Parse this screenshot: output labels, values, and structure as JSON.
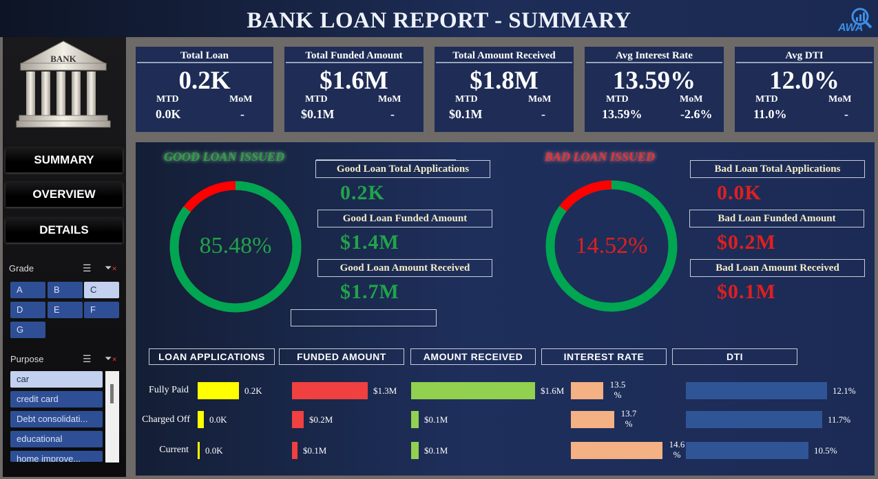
{
  "header": {
    "title": "BANK LOAN REPORT - SUMMARY",
    "logo_text": "AWA"
  },
  "sidebar": {
    "bank_label": "BANK",
    "nav": [
      "SUMMARY",
      "OVERVIEW",
      "DETAILS"
    ],
    "grade_slicer": {
      "title": "Grade",
      "items": [
        "A",
        "B",
        "C",
        "D",
        "E",
        "F",
        "G"
      ],
      "selected": "C"
    },
    "purpose_slicer": {
      "title": "Purpose",
      "items": [
        "car",
        "credit card",
        "Debt consolidati...",
        "educational",
        "home improve..."
      ],
      "selected": "car"
    }
  },
  "kpis": [
    {
      "title": "Total Loan",
      "value": "0.2K",
      "mtd_label": "MTD",
      "mom_label": "MoM",
      "mtd": "0.0K",
      "mom": "-"
    },
    {
      "title": "Total Funded Amount",
      "value": "$1.6M",
      "mtd_label": "MTD",
      "mom_label": "MoM",
      "mtd": "$0.1M",
      "mom": "-"
    },
    {
      "title": "Total Amount Received",
      "value": "$1.8M",
      "mtd_label": "MTD",
      "mom_label": "MoM",
      "mtd": "$0.1M",
      "mom": "-"
    },
    {
      "title": "Avg Interest Rate",
      "value": "13.59%",
      "mtd_label": "MTD",
      "mom_label": "MoM",
      "mtd": "13.59%",
      "mom": "-2.6%"
    },
    {
      "title": "Avg DTI",
      "value": "12.0%",
      "mtd_label": "MTD",
      "mom_label": "MoM",
      "mtd": "11.0%",
      "mom": "-"
    }
  ],
  "good_loan": {
    "title": "GOOD LOAN ISSUED",
    "percent": "85.48%",
    "fraction": 0.8548,
    "stats": [
      {
        "label": "Good Loan Total Applications",
        "value": "0.2K"
      },
      {
        "label": "Good Loan Funded Amount",
        "value": "$1.4M"
      },
      {
        "label": "Good Loan Amount Received",
        "value": "$1.7M"
      }
    ]
  },
  "bad_loan": {
    "title": "BAD LOAN ISSUED",
    "percent": "14.52%",
    "fraction": 0.1452,
    "stats": [
      {
        "label": "Bad Loan Total Applications",
        "value": "0.0K"
      },
      {
        "label": "Bad Loan Funded Amount",
        "value": "$0.2M"
      },
      {
        "label": "Bad Loan Amount Received",
        "value": "$0.1M"
      }
    ]
  },
  "colors": {
    "good": "#00a651",
    "bad": "#ff0000",
    "panel": "#1e2c56"
  },
  "status_table": {
    "headers": [
      "LOAN APPLICATIONS",
      "FUNDED AMOUNT",
      "AMOUNT RECEIVED",
      "INTEREST RATE",
      "DTI"
    ],
    "rows": [
      "Fully Paid",
      "Charged Off",
      "Current"
    ]
  },
  "chart_data": [
    {
      "type": "bar",
      "title": "LOAN APPLICATIONS",
      "categories": [
        "Fully Paid",
        "Charged Off",
        "Current"
      ],
      "values": [
        0.2,
        0.0,
        0.0
      ],
      "labels": [
        "0.2K",
        "0.0K",
        "0.0K"
      ],
      "color": "#ffff00"
    },
    {
      "type": "bar",
      "title": "FUNDED AMOUNT",
      "categories": [
        "Fully Paid",
        "Charged Off",
        "Current"
      ],
      "values": [
        1.3,
        0.2,
        0.1
      ],
      "labels": [
        "$1.3M",
        "$0.2M",
        "$0.1M"
      ],
      "color": "#f04040"
    },
    {
      "type": "bar",
      "title": "AMOUNT RECEIVED",
      "categories": [
        "Fully Paid",
        "Charged Off",
        "Current"
      ],
      "values": [
        1.6,
        0.1,
        0.1
      ],
      "labels": [
        "$1.6M",
        "$0.1M",
        "$0.1M"
      ],
      "color": "#92d050"
    },
    {
      "type": "bar",
      "title": "INTEREST RATE",
      "categories": [
        "Fully Paid",
        "Charged Off",
        "Current"
      ],
      "values": [
        13.5,
        13.7,
        14.6
      ],
      "labels": [
        "13.5 %",
        "13.7 %",
        "14.6 %"
      ],
      "color": "#f4b183"
    },
    {
      "type": "bar",
      "title": "DTI",
      "categories": [
        "Fully Paid",
        "Charged Off",
        "Current"
      ],
      "values": [
        12.1,
        11.7,
        10.5
      ],
      "labels": [
        "12.1%",
        "11.7%",
        "10.5%"
      ],
      "color": "#2f5597"
    }
  ]
}
